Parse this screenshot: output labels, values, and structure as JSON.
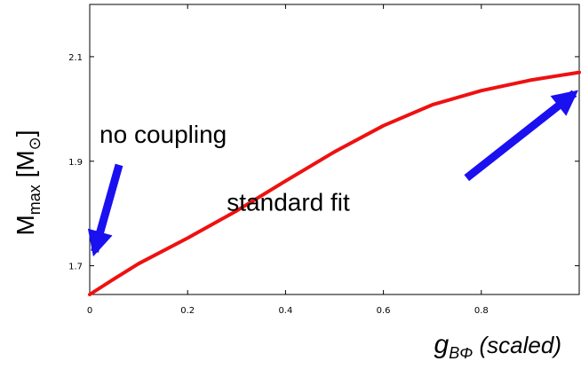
{
  "chart_data": {
    "type": "line",
    "title": "",
    "xlabel": {
      "main": "g",
      "sub": "BΦ",
      "suffix": " (scaled)"
    },
    "ylabel": {
      "main": "M",
      "sub": "max",
      "unit_open": " [M",
      "unit_sub": "⊙",
      "unit_close": "]"
    },
    "xlim": [
      0,
      1.0
    ],
    "ylim": [
      1.645,
      2.2
    ],
    "xticks": [
      0,
      0.2,
      0.4,
      0.6,
      0.8
    ],
    "xtick_labels": [
      "0",
      "0.2",
      "0.4",
      "0.6",
      "0.8"
    ],
    "yticks": [
      1.7,
      1.9,
      2.1
    ],
    "ytick_labels": [
      "1.7",
      "1.9",
      "2.1"
    ],
    "grid": false,
    "series": [
      {
        "color": "#ee1111",
        "x": [
          0,
          0.05,
          0.1,
          0.2,
          0.3,
          0.4,
          0.5,
          0.6,
          0.7,
          0.8,
          0.9,
          1.0
        ],
        "y": [
          1.645,
          1.675,
          1.704,
          1.753,
          1.805,
          1.862,
          1.918,
          1.968,
          2.008,
          2.035,
          2.055,
          2.07
        ]
      }
    ],
    "annotations": [
      {
        "text": "no coupling",
        "text_x": 0.02,
        "text_y": 1.935,
        "arrow_from": [
          0.06,
          1.893
        ],
        "arrow_to": [
          0.01,
          1.727
        ]
      },
      {
        "text": "standard fit",
        "text_x": 0.28,
        "text_y": 1.805,
        "arrow_from": [
          0.77,
          1.868
        ],
        "arrow_to": [
          0.99,
          2.03
        ]
      }
    ],
    "arrow_color": "#1a10f0"
  }
}
